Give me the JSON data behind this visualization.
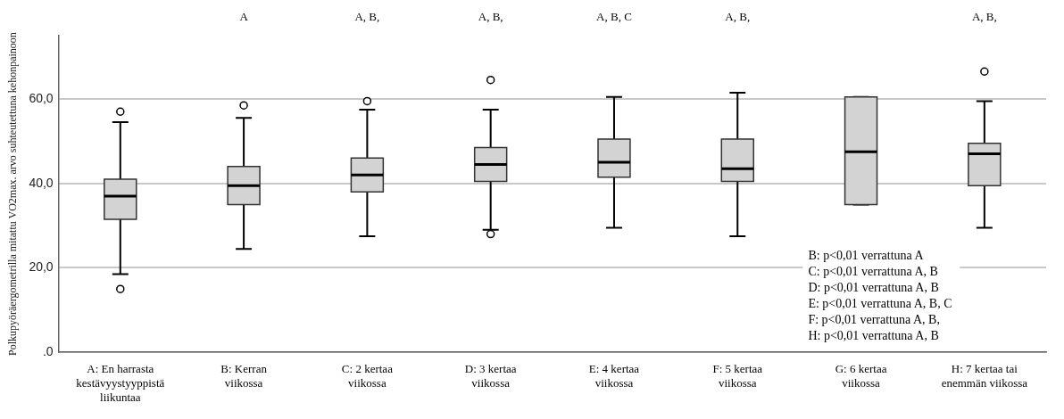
{
  "chart_data": {
    "type": "box",
    "ylabel": "Polkupyöräergometrilla mitattu VO2max. arvo suhteutettuna kehonpainoon",
    "categories": [
      "A: En harrasta kestävyystyyppistä liikuntaa",
      "B: Kerran viikossa",
      "C: 2 kertaa viikossa",
      "D: 3 kertaa viikossa",
      "E: 4 kertaa viikossa",
      "F: 5 kertaa viikossa",
      "G: 6 kertaa viikossa",
      "H: 7 kertaa tai enemmän viikossa"
    ],
    "series": [
      {
        "color": "#d3d3d3",
        "boxes": [
          {
            "low": 18.5,
            "q1": 31.5,
            "median": 37,
            "q3": 41,
            "high": 54.5,
            "outliers": [
              57,
              15
            ]
          },
          {
            "low": 24.5,
            "q1": 35,
            "median": 39.5,
            "q3": 44,
            "high": 55.5,
            "outliers": [
              58.5
            ]
          },
          {
            "low": 27.5,
            "q1": 38,
            "median": 42,
            "q3": 46,
            "high": 57.5,
            "outliers": [
              59.5
            ]
          },
          {
            "low": 29,
            "q1": 40.5,
            "median": 44.5,
            "q3": 48.5,
            "high": 57.5,
            "outliers": [
              64.5,
              28
            ]
          },
          {
            "low": 29.5,
            "q1": 41.5,
            "median": 45,
            "q3": 50.5,
            "high": 60.5
          },
          {
            "low": 27.5,
            "q1": 40.5,
            "median": 43.5,
            "q3": 50.5,
            "high": 61.5
          },
          {
            "low": 35,
            "q1": 35,
            "median": 47.5,
            "q3": 60.5,
            "high": 60.5
          },
          {
            "low": 29.5,
            "q1": 39.5,
            "median": 47,
            "q3": 49.5,
            "high": 59.5,
            "outliers": [
              66.5
            ]
          }
        ]
      }
    ],
    "ylim": [
      0,
      75
    ],
    "yticks": [
      {
        "value": 0,
        "label": ".0"
      },
      {
        "value": 20,
        "label": "20,0"
      },
      {
        "value": 40,
        "label": "40,0"
      },
      {
        "value": 60,
        "label": "60,0"
      }
    ],
    "grid": "y",
    "legend": false,
    "annotations": [
      "A",
      "A, B,",
      "A, B,",
      "A, B, C",
      "A, B,",
      "A, B,",
      "B: p<0,01 verrattuna A",
      "C: p<0,01 verrattuna A, B",
      "D: p<0,01 verrattuna A, B",
      "E: p<0,01 verrattuna A, B, C",
      "F: p<0,01 verrattuna A, B,",
      "H: p<0,01 verrattuna A, B"
    ]
  }
}
